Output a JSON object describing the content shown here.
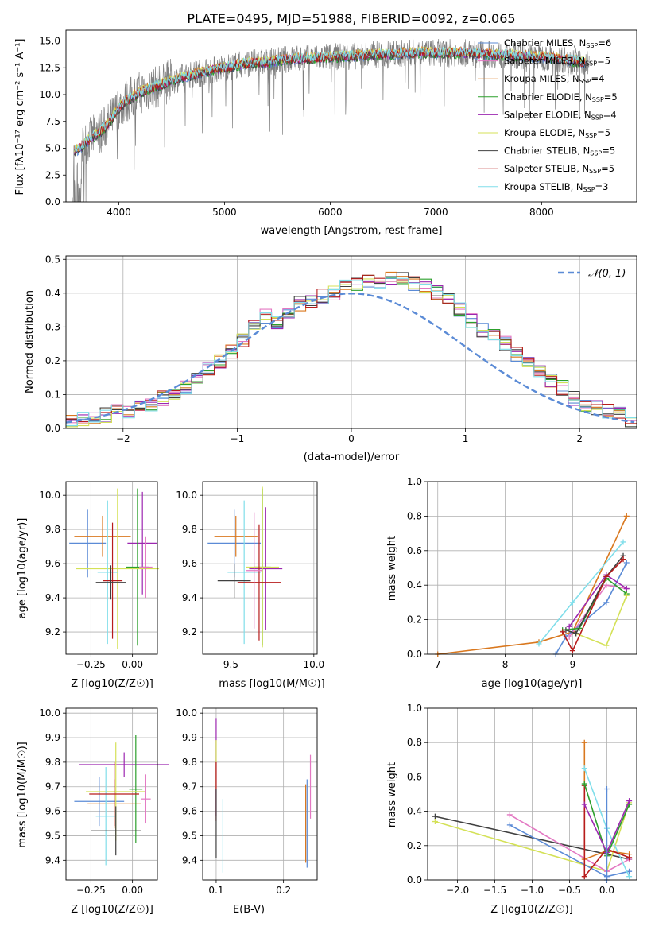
{
  "chart_data": [
    {
      "type": "line",
      "title": "PLATE=0495, MJD=51988, FIBERID=0092, z=0.065",
      "xlabel": "wavelength [Angstrom, rest frame]",
      "ylabel": "Flux [fλ10⁻¹⁷ erg cm⁻² s⁻¹ A⁻¹]",
      "xlim": [
        3500,
        8900
      ],
      "ylim": [
        0,
        16
      ],
      "xticks": [
        4000,
        5000,
        6000,
        7000,
        8000
      ],
      "yticks": [
        0.0,
        2.5,
        5.0,
        7.5,
        10.0,
        12.5,
        15.0
      ],
      "grid": false,
      "legend_position": "right",
      "continuum": {
        "x": [
          3600,
          3700,
          3800,
          3900,
          4000,
          4100,
          4200,
          4300,
          4400,
          4500,
          4600,
          4800,
          5000,
          5200,
          5400,
          5600,
          5800,
          6000,
          6200,
          6400,
          6600,
          6800,
          7000,
          7200,
          7400,
          7600,
          7800,
          8000,
          8200,
          8400
        ],
        "y": [
          4.8,
          5.6,
          6.4,
          7.2,
          8.8,
          9.6,
          10.2,
          10.6,
          10.9,
          11.3,
          11.6,
          12.1,
          12.5,
          12.9,
          13.0,
          13.3,
          13.4,
          13.5,
          13.6,
          13.7,
          13.8,
          13.9,
          13.9,
          13.9,
          13.8,
          13.7,
          13.6,
          13.5,
          13.3,
          13.0
        ]
      },
      "series": [
        {
          "name": "Chabrier MILES, N_SSP=6",
          "color": "#5b8bd6"
        },
        {
          "name": "Salpeter MILES, N_SSP=5",
          "color": "#e377c2"
        },
        {
          "name": "Kroupa MILES, N_SSP=4",
          "color": "#d9781f"
        },
        {
          "name": "Chabrier ELODIE, N_SSP=5",
          "color": "#2ca02c"
        },
        {
          "name": "Salpeter ELODIE, N_SSP=4",
          "color": "#9c27b0"
        },
        {
          "name": "Kroupa ELODIE, N_SSP=5",
          "color": "#d4e157"
        },
        {
          "name": "Chabrier STELIB, N_SSP=5",
          "color": "#404040"
        },
        {
          "name": "Salpeter STELIB, N_SSP=5",
          "color": "#b71c1c"
        },
        {
          "name": "Kroupa STELIB, N_SSP=3",
          "color": "#80deea"
        }
      ],
      "legend_labels": [
        {
          "pre": "Chabrier MILES, N",
          "sub": "SSP",
          "post": "=6"
        },
        {
          "pre": "Salpeter MILES, N",
          "sub": "SSP",
          "post": "=5"
        },
        {
          "pre": "Kroupa MILES, N",
          "sub": "SSP",
          "post": "=4"
        },
        {
          "pre": "Chabrier ELODIE, N",
          "sub": "SSP",
          "post": "=5"
        },
        {
          "pre": "Salpeter ELODIE, N",
          "sub": "SSP",
          "post": "=4"
        },
        {
          "pre": "Kroupa ELODIE, N",
          "sub": "SSP",
          "post": "=5"
        },
        {
          "pre": "Chabrier STELIB, N",
          "sub": "SSP",
          "post": "=5"
        },
        {
          "pre": "Salpeter STELIB, N",
          "sub": "SSP",
          "post": "=5"
        },
        {
          "pre": "Kroupa STELIB, N",
          "sub": "SSP",
          "post": "=3"
        }
      ]
    },
    {
      "type": "histogram",
      "xlabel": "(data-model)/error",
      "ylabel": "Normed distribution",
      "xlim": [
        -2.5,
        2.5
      ],
      "ylim": [
        0,
        0.51
      ],
      "xticks": [
        -2,
        -1,
        0,
        1,
        2
      ],
      "yticks": [
        0.0,
        0.1,
        0.2,
        0.3,
        0.4,
        0.5
      ],
      "grid": true,
      "legend": "𝒩(0, 1)",
      "legend_position": "top-right",
      "bin_width": 0.1,
      "bin_start": -2.5,
      "values": [
        0.02,
        0.03,
        0.03,
        0.04,
        0.05,
        0.05,
        0.06,
        0.07,
        0.09,
        0.1,
        0.12,
        0.15,
        0.18,
        0.2,
        0.23,
        0.26,
        0.3,
        0.33,
        0.31,
        0.34,
        0.37,
        0.38,
        0.39,
        0.4,
        0.42,
        0.43,
        0.44,
        0.43,
        0.44,
        0.45,
        0.43,
        0.42,
        0.4,
        0.38,
        0.35,
        0.32,
        0.29,
        0.27,
        0.25,
        0.22,
        0.2,
        0.17,
        0.14,
        0.12,
        0.09,
        0.07,
        0.06,
        0.05,
        0.04,
        0.02
      ],
      "gaussian": {
        "mean": 0,
        "sigma": 1
      }
    },
    {
      "type": "errorbar",
      "xlabel": "Z [log10(Z/Z☉)]",
      "ylabel": "age  [log10(age/yr)]",
      "xlim": [
        -0.4,
        0.15
      ],
      "ylim": [
        9.07,
        10.08
      ],
      "xticks": [
        -0.25,
        0.0
      ],
      "yticks": [
        9.2,
        9.4,
        9.6,
        9.8,
        10.0
      ],
      "grid": true,
      "points": [
        {
          "x": -0.27,
          "xerr": 0.11,
          "y": 9.72,
          "yerr": 0.2,
          "color": "#5b8bd6"
        },
        {
          "x": -0.18,
          "xerr": 0.17,
          "y": 9.76,
          "yerr": 0.12,
          "color": "#d9781f"
        },
        {
          "x": 0.06,
          "xerr": 0.09,
          "y": 9.72,
          "yerr": 0.3,
          "color": "#9c27b0"
        },
        {
          "x": 0.03,
          "xerr": 0.07,
          "y": 9.58,
          "yerr": 0.46,
          "color": "#2ca02c"
        },
        {
          "x": -0.09,
          "xerr": 0.25,
          "y": 9.57,
          "yerr": 0.47,
          "color": "#d4e157"
        },
        {
          "x": -0.15,
          "xerr": 0.06,
          "y": 9.55,
          "yerr": 0.42,
          "color": "#80deea"
        },
        {
          "x": -0.12,
          "xerr": 0.06,
          "y": 9.5,
          "yerr": 0.34,
          "color": "#b71c1c"
        },
        {
          "x": -0.13,
          "xerr": 0.09,
          "y": 9.49,
          "yerr": 0.1,
          "color": "#404040"
        },
        {
          "x": 0.08,
          "xerr": 0.04,
          "y": 9.58,
          "yerr": 0.18,
          "color": "#e377c2"
        }
      ]
    },
    {
      "type": "errorbar",
      "xlabel": "mass [log10(M/M☉)]",
      "ylabel": "",
      "xlim": [
        9.33,
        10.02
      ],
      "ylim": [
        9.07,
        10.08
      ],
      "xticks": [
        9.5,
        10.0
      ],
      "yticks": [
        9.2,
        9.4,
        9.6,
        9.8,
        10.0
      ],
      "grid": true,
      "points": [
        {
          "x": 9.52,
          "xerr": 0.16,
          "y": 9.72,
          "yerr": 0.2,
          "color": "#5b8bd6"
        },
        {
          "x": 9.53,
          "xerr": 0.13,
          "y": 9.76,
          "yerr": 0.12,
          "color": "#d9781f"
        },
        {
          "x": 9.71,
          "xerr": 0.1,
          "y": 9.57,
          "yerr": 0.36,
          "color": "#9c27b0"
        },
        {
          "x": 9.69,
          "xerr": 0.05,
          "y": 9.58,
          "yerr": 0.46,
          "color": "#2ca02c"
        },
        {
          "x": 9.69,
          "xerr": 0.1,
          "y": 9.58,
          "yerr": 0.47,
          "color": "#d4e157"
        },
        {
          "x": 9.58,
          "xerr": 0.1,
          "y": 9.55,
          "yerr": 0.42,
          "color": "#80deea"
        },
        {
          "x": 9.67,
          "xerr": 0.13,
          "y": 9.49,
          "yerr": 0.34,
          "color": "#b71c1c"
        },
        {
          "x": 9.52,
          "xerr": 0.1,
          "y": 9.5,
          "yerr": 0.1,
          "color": "#404040"
        },
        {
          "x": 9.64,
          "xerr": 0.05,
          "y": 9.56,
          "yerr": 0.34,
          "color": "#e377c2"
        }
      ]
    },
    {
      "type": "line",
      "xlabel": "age  [log10(age/yr)]",
      "ylabel": "mass weight",
      "xlim": [
        6.85,
        9.95
      ],
      "ylim": [
        0,
        1.0
      ],
      "xticks": [
        7,
        8,
        9
      ],
      "yticks": [
        0.0,
        0.2,
        0.4,
        0.6,
        0.8,
        1.0
      ],
      "grid": true,
      "series": [
        {
          "name": "Kroupa MILES",
          "color": "#d9781f",
          "x": [
            7.0,
            8.5,
            9.0,
            9.8
          ],
          "y": [
            0.0,
            0.07,
            0.13,
            0.8
          ]
        },
        {
          "name": "Kroupa STELIB",
          "color": "#80deea",
          "x": [
            8.5,
            9.0,
            9.75
          ],
          "y": [
            0.06,
            0.3,
            0.65
          ]
        },
        {
          "name": "Chabrier MILES",
          "color": "#5b8bd6",
          "x": [
            8.75,
            8.9,
            9.5,
            9.8
          ],
          "y": [
            0.0,
            0.1,
            0.3,
            0.53
          ]
        },
        {
          "name": "Salpeter MILES",
          "color": "#e377c2",
          "x": [
            8.95,
            9.5,
            9.8
          ],
          "y": [
            0.1,
            0.4,
            0.38
          ]
        },
        {
          "name": "Chabrier ELODIE",
          "color": "#2ca02c",
          "x": [
            8.85,
            9.1,
            9.5,
            9.8
          ],
          "y": [
            0.14,
            0.15,
            0.44,
            0.35
          ]
        },
        {
          "name": "Salpeter ELODIE",
          "color": "#9c27b0",
          "x": [
            8.95,
            9.5,
            9.8
          ],
          "y": [
            0.16,
            0.46,
            0.38
          ]
        },
        {
          "name": "Kroupa ELODIE",
          "color": "#d4e157",
          "x": [
            9.05,
            9.5,
            9.8
          ],
          "y": [
            0.12,
            0.05,
            0.34
          ]
        },
        {
          "name": "Chabrier STELIB",
          "color": "#404040",
          "x": [
            8.9,
            9.05,
            9.5,
            9.75
          ],
          "y": [
            0.14,
            0.12,
            0.45,
            0.57
          ]
        },
        {
          "name": "Salpeter STELIB",
          "color": "#b71c1c",
          "x": [
            8.85,
            9.0,
            9.5,
            9.75
          ],
          "y": [
            0.13,
            0.02,
            0.45,
            0.55
          ]
        }
      ]
    },
    {
      "type": "errorbar",
      "xlabel": "Z [log10(Z/Z☉)]",
      "ylabel": "mass [log10(M/M☉)]",
      "xlim": [
        -0.4,
        0.15
      ],
      "ylim": [
        9.32,
        10.02
      ],
      "xticks": [
        -0.25,
        0.0
      ],
      "yticks": [
        9.4,
        9.5,
        9.6,
        9.7,
        9.8,
        9.9,
        10.0
      ],
      "grid": true,
      "points": [
        {
          "x": -0.2,
          "xerr": 0.15,
          "y": 9.64,
          "yerr": 0.1,
          "color": "#5b8bd6"
        },
        {
          "x": -0.11,
          "xerr": 0.16,
          "y": 9.63,
          "yerr": 0.1,
          "color": "#d9781f"
        },
        {
          "x": -0.05,
          "xerr": 0.27,
          "y": 9.79,
          "yerr": 0.05,
          "color": "#9c27b0"
        },
        {
          "x": 0.02,
          "xerr": 0.04,
          "y": 9.69,
          "yerr": 0.22,
          "color": "#2ca02c"
        },
        {
          "x": -0.1,
          "xerr": 0.18,
          "y": 9.68,
          "yerr": 0.2,
          "color": "#d4e157"
        },
        {
          "x": -0.16,
          "xerr": 0.06,
          "y": 9.58,
          "yerr": 0.2,
          "color": "#80deea"
        },
        {
          "x": -0.11,
          "xerr": 0.15,
          "y": 9.67,
          "yerr": 0.13,
          "color": "#b71c1c"
        },
        {
          "x": -0.1,
          "xerr": 0.15,
          "y": 9.52,
          "yerr": 0.1,
          "color": "#404040"
        },
        {
          "x": 0.08,
          "xerr": 0.03,
          "y": 9.65,
          "yerr": 0.1,
          "color": "#e377c2"
        }
      ]
    },
    {
      "type": "errorbar",
      "xlabel": "E(B-V)",
      "ylabel": "",
      "xlim": [
        0.08,
        0.25
      ],
      "ylim": [
        9.32,
        10.02
      ],
      "xticks": [
        0.1,
        0.2
      ],
      "yticks": [
        9.4,
        9.5,
        9.6,
        9.7,
        9.8,
        9.9,
        10.0
      ],
      "grid": true,
      "points": [
        {
          "x": 0.1,
          "y": 9.78,
          "yerr": 0.2,
          "color": "#9c27b0"
        },
        {
          "x": 0.1,
          "y": 9.79,
          "yerr": 0.1,
          "color": "#d4e157"
        },
        {
          "x": 0.1,
          "y": 9.68,
          "yerr": 0.12,
          "color": "#b71c1c"
        },
        {
          "x": 0.1,
          "y": 9.55,
          "yerr": 0.14,
          "color": "#404040"
        },
        {
          "x": 0.11,
          "y": 9.5,
          "yerr": 0.15,
          "color": "#80deea"
        },
        {
          "x": 0.235,
          "y": 9.55,
          "yerr": 0.18,
          "color": "#5b8bd6"
        },
        {
          "x": 0.233,
          "y": 9.55,
          "yerr": 0.16,
          "color": "#d9781f"
        },
        {
          "x": 0.24,
          "y": 9.7,
          "yerr": 0.13,
          "color": "#e377c2"
        }
      ]
    },
    {
      "type": "line",
      "xlabel": "Z [log10(Z/Z☉)]",
      "ylabel": "mass weight",
      "xlim": [
        -2.4,
        0.4
      ],
      "ylim": [
        0,
        1.0
      ],
      "xticks": [
        -2.0,
        -1.5,
        -1.0,
        -0.5,
        0.0
      ],
      "yticks": [
        0.0,
        0.2,
        0.4,
        0.6,
        0.8,
        1.0
      ],
      "grid": true,
      "series": [
        {
          "name": "Chabrier STELIB",
          "color": "#404040",
          "x": [
            -2.3,
            0.0,
            0.3
          ],
          "y": [
            0.37,
            0.15,
            0.12
          ]
        },
        {
          "name": "Kroupa ELODIE",
          "color": "#d4e157",
          "x": [
            -2.3,
            0.0,
            0.3
          ],
          "y": [
            0.34,
            0.05,
            0.45
          ]
        },
        {
          "name": "Chabrier MILES",
          "color": "#5b8bd6",
          "x": [
            -1.3,
            0.0,
            0.3
          ],
          "y": [
            0.32,
            0.02,
            0.05
          ]
        },
        {
          "name": "Salpeter MILES",
          "color": "#e377c2",
          "x": [
            -1.3,
            0.0,
            0.3
          ],
          "y": [
            0.38,
            0.05,
            0.12
          ]
        },
        {
          "name": "Kroupa MILES",
          "color": "#d9781f",
          "x": [
            -0.3,
            -0.3,
            0.0,
            0.3
          ],
          "y": [
            0.8,
            0.12,
            0.17,
            0.15
          ]
        },
        {
          "name": "Kroupa STELIB",
          "color": "#80deea",
          "x": [
            -0.3,
            0.0,
            0.3
          ],
          "y": [
            0.65,
            0.3,
            0.02
          ]
        },
        {
          "name": "Salpeter STELIB",
          "color": "#b71c1c",
          "x": [
            -0.3,
            -0.3,
            0.0,
            0.3
          ],
          "y": [
            0.55,
            0.02,
            0.18,
            0.13
          ]
        },
        {
          "name": "Chabrier ELODIE",
          "color": "#2ca02c",
          "x": [
            -0.3,
            0.0,
            0.3
          ],
          "y": [
            0.56,
            0.14,
            0.44
          ]
        },
        {
          "name": "Salpeter ELODIE",
          "color": "#9c27b0",
          "x": [
            -0.3,
            0.0,
            0.3
          ],
          "y": [
            0.44,
            0.16,
            0.46
          ]
        },
        {
          "name": "Chabrier MILES b",
          "color": "#5b8bd6",
          "x": [
            0.0,
            0.0
          ],
          "y": [
            0.53,
            0.0
          ]
        }
      ]
    }
  ]
}
